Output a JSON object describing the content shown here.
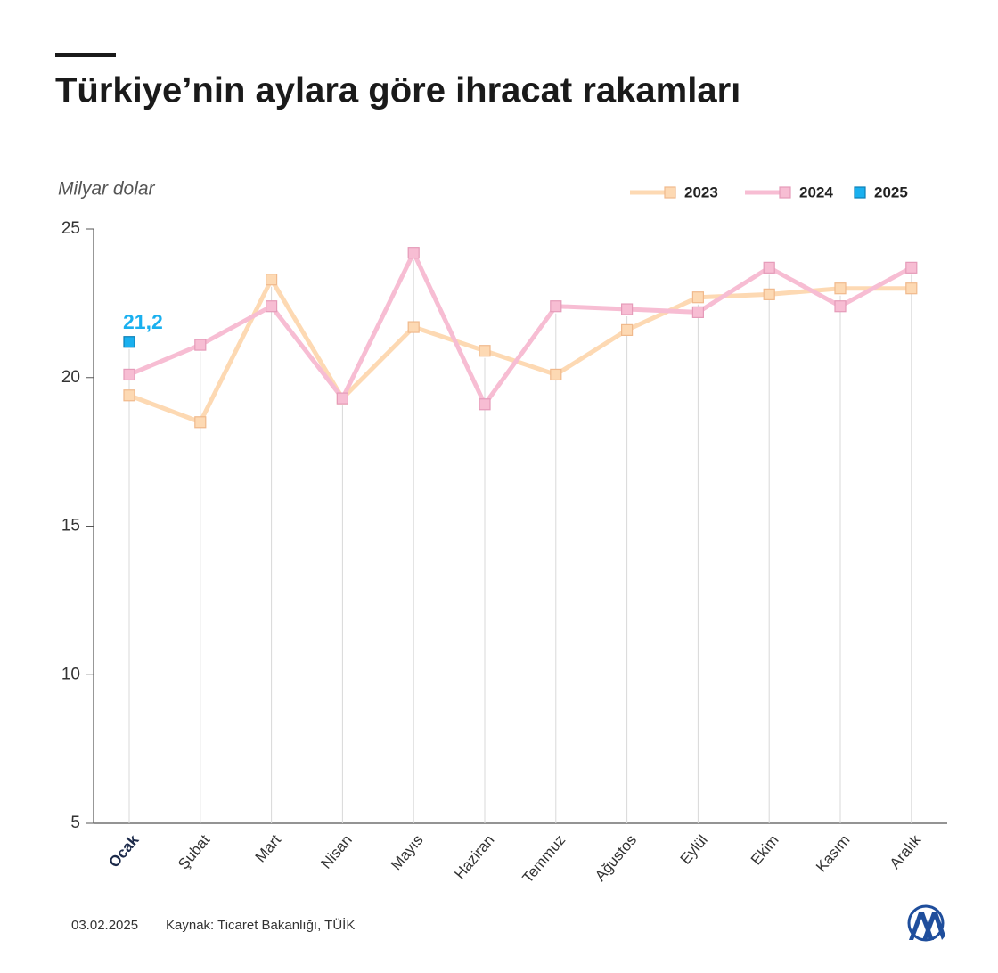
{
  "chart_data": {
    "type": "line",
    "title": "Türkiye’nin aylara göre ihracat rakamları",
    "y_label": "Milyar dolar",
    "categories": [
      "Ocak",
      "Şubat",
      "Mart",
      "Nisan",
      "Mayıs",
      "Haziran",
      "Temmuz",
      "Ağustos",
      "Eylül",
      "Ekim",
      "Kasım",
      "Aralık"
    ],
    "series": [
      {
        "name": "2023",
        "color": "#fdd9b3",
        "values": [
          19.4,
          18.5,
          23.3,
          19.3,
          21.7,
          20.9,
          20.1,
          21.6,
          22.7,
          22.8,
          23.0,
          23.0
        ]
      },
      {
        "name": "2024",
        "color": "#f7bdd3",
        "values": [
          20.1,
          21.1,
          22.4,
          19.3,
          24.2,
          19.1,
          22.4,
          22.3,
          22.2,
          23.7,
          22.4,
          23.7
        ]
      },
      {
        "name": "2025",
        "color": "#1ab0ef",
        "values": [
          21.2,
          null,
          null,
          null,
          null,
          null,
          null,
          null,
          null,
          null,
          null,
          null
        ],
        "value_labels": [
          "21,2",
          null,
          null,
          null,
          null,
          null,
          null,
          null,
          null,
          null,
          null,
          null
        ]
      }
    ],
    "ylim": [
      5,
      25
    ],
    "yticks": [
      5,
      10,
      15,
      20,
      25
    ],
    "legend": "top-right",
    "date": "03.02.2025",
    "source": "Kaynak: Ticaret Bakanlığı, TÜİK"
  }
}
